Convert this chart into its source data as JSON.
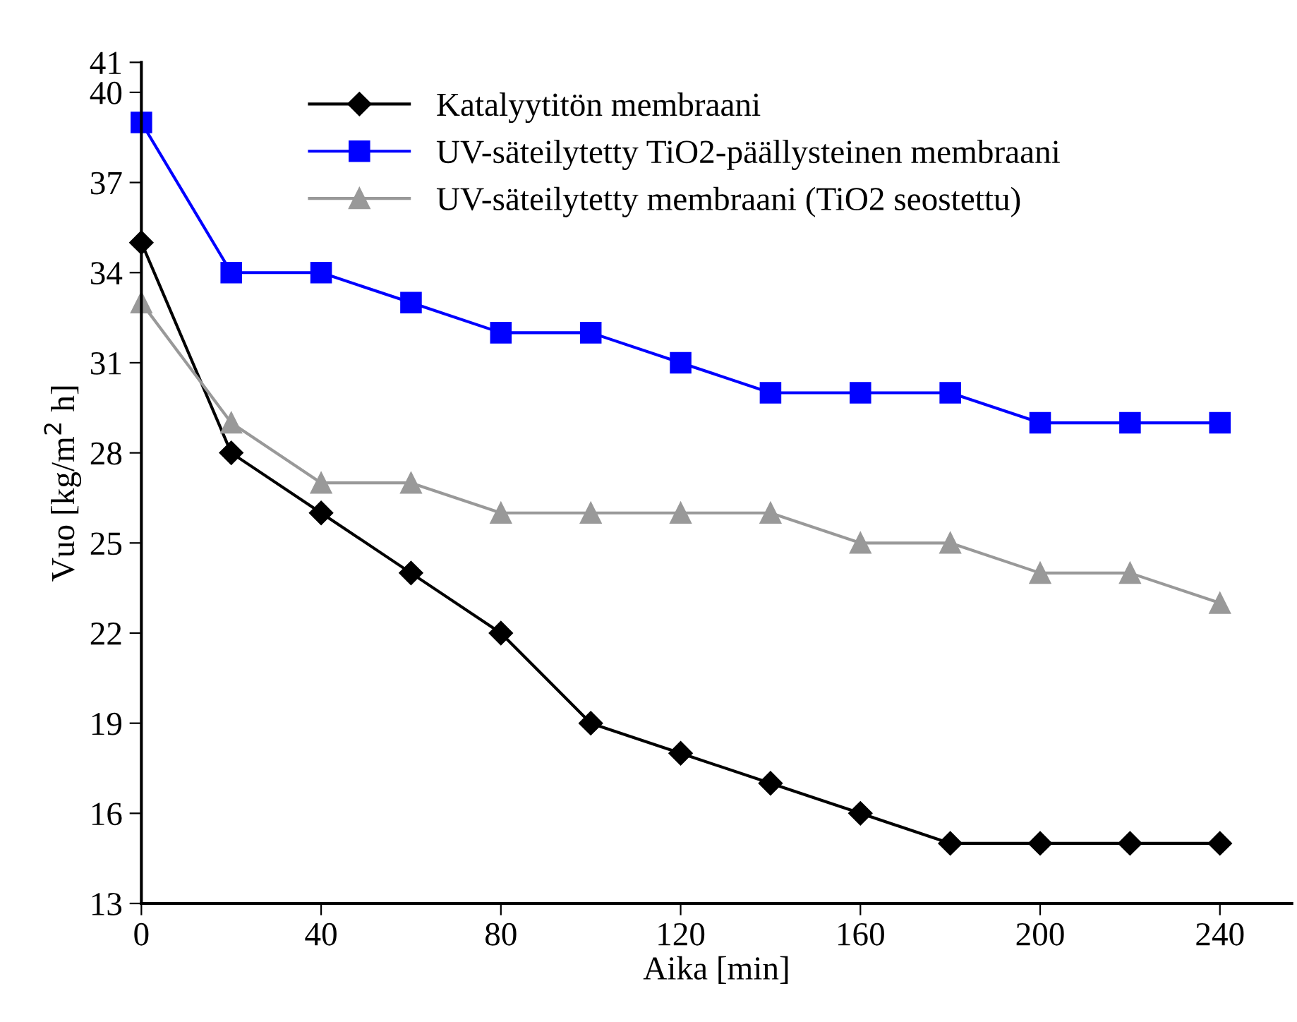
{
  "chart_data": {
    "type": "line",
    "xlabel": "Aika [min]",
    "ylabel": "Vuo [kg/m$^{2}$ h]",
    "x": [
      0,
      20,
      40,
      60,
      80,
      100,
      120,
      140,
      160,
      180,
      200,
      220,
      240
    ],
    "xlim": [
      0,
      256
    ],
    "xticks": [
      0,
      40,
      80,
      120,
      160,
      200,
      240
    ],
    "ylim": [
      13,
      41
    ],
    "yticks": [
      13,
      16,
      19,
      22,
      25,
      28,
      31,
      34,
      37,
      40,
      41
    ],
    "grid": false,
    "legend": "top",
    "line_style": "solid",
    "series": [
      {
        "name": "Katalyytitön membraani",
        "color": "#000000",
        "marker": "diamond",
        "values": [
          35,
          28,
          26,
          24,
          22,
          19,
          18,
          17,
          16,
          15,
          15,
          15,
          15
        ]
      },
      {
        "name": "UV-säteilytetty TiO2-päällysteinen membraani",
        "color": "#0000ff",
        "marker": "square",
        "values": [
          39,
          34,
          34,
          33,
          32,
          32,
          31,
          30,
          30,
          30,
          29,
          29,
          29
        ]
      },
      {
        "name": "UV-säteilytetty membraani (TiO2 seostettu)",
        "color": "#999999",
        "marker": "triangle",
        "values": [
          33,
          29,
          27,
          27,
          26,
          26,
          26,
          26,
          25,
          25,
          24,
          24,
          23
        ]
      }
    ]
  }
}
